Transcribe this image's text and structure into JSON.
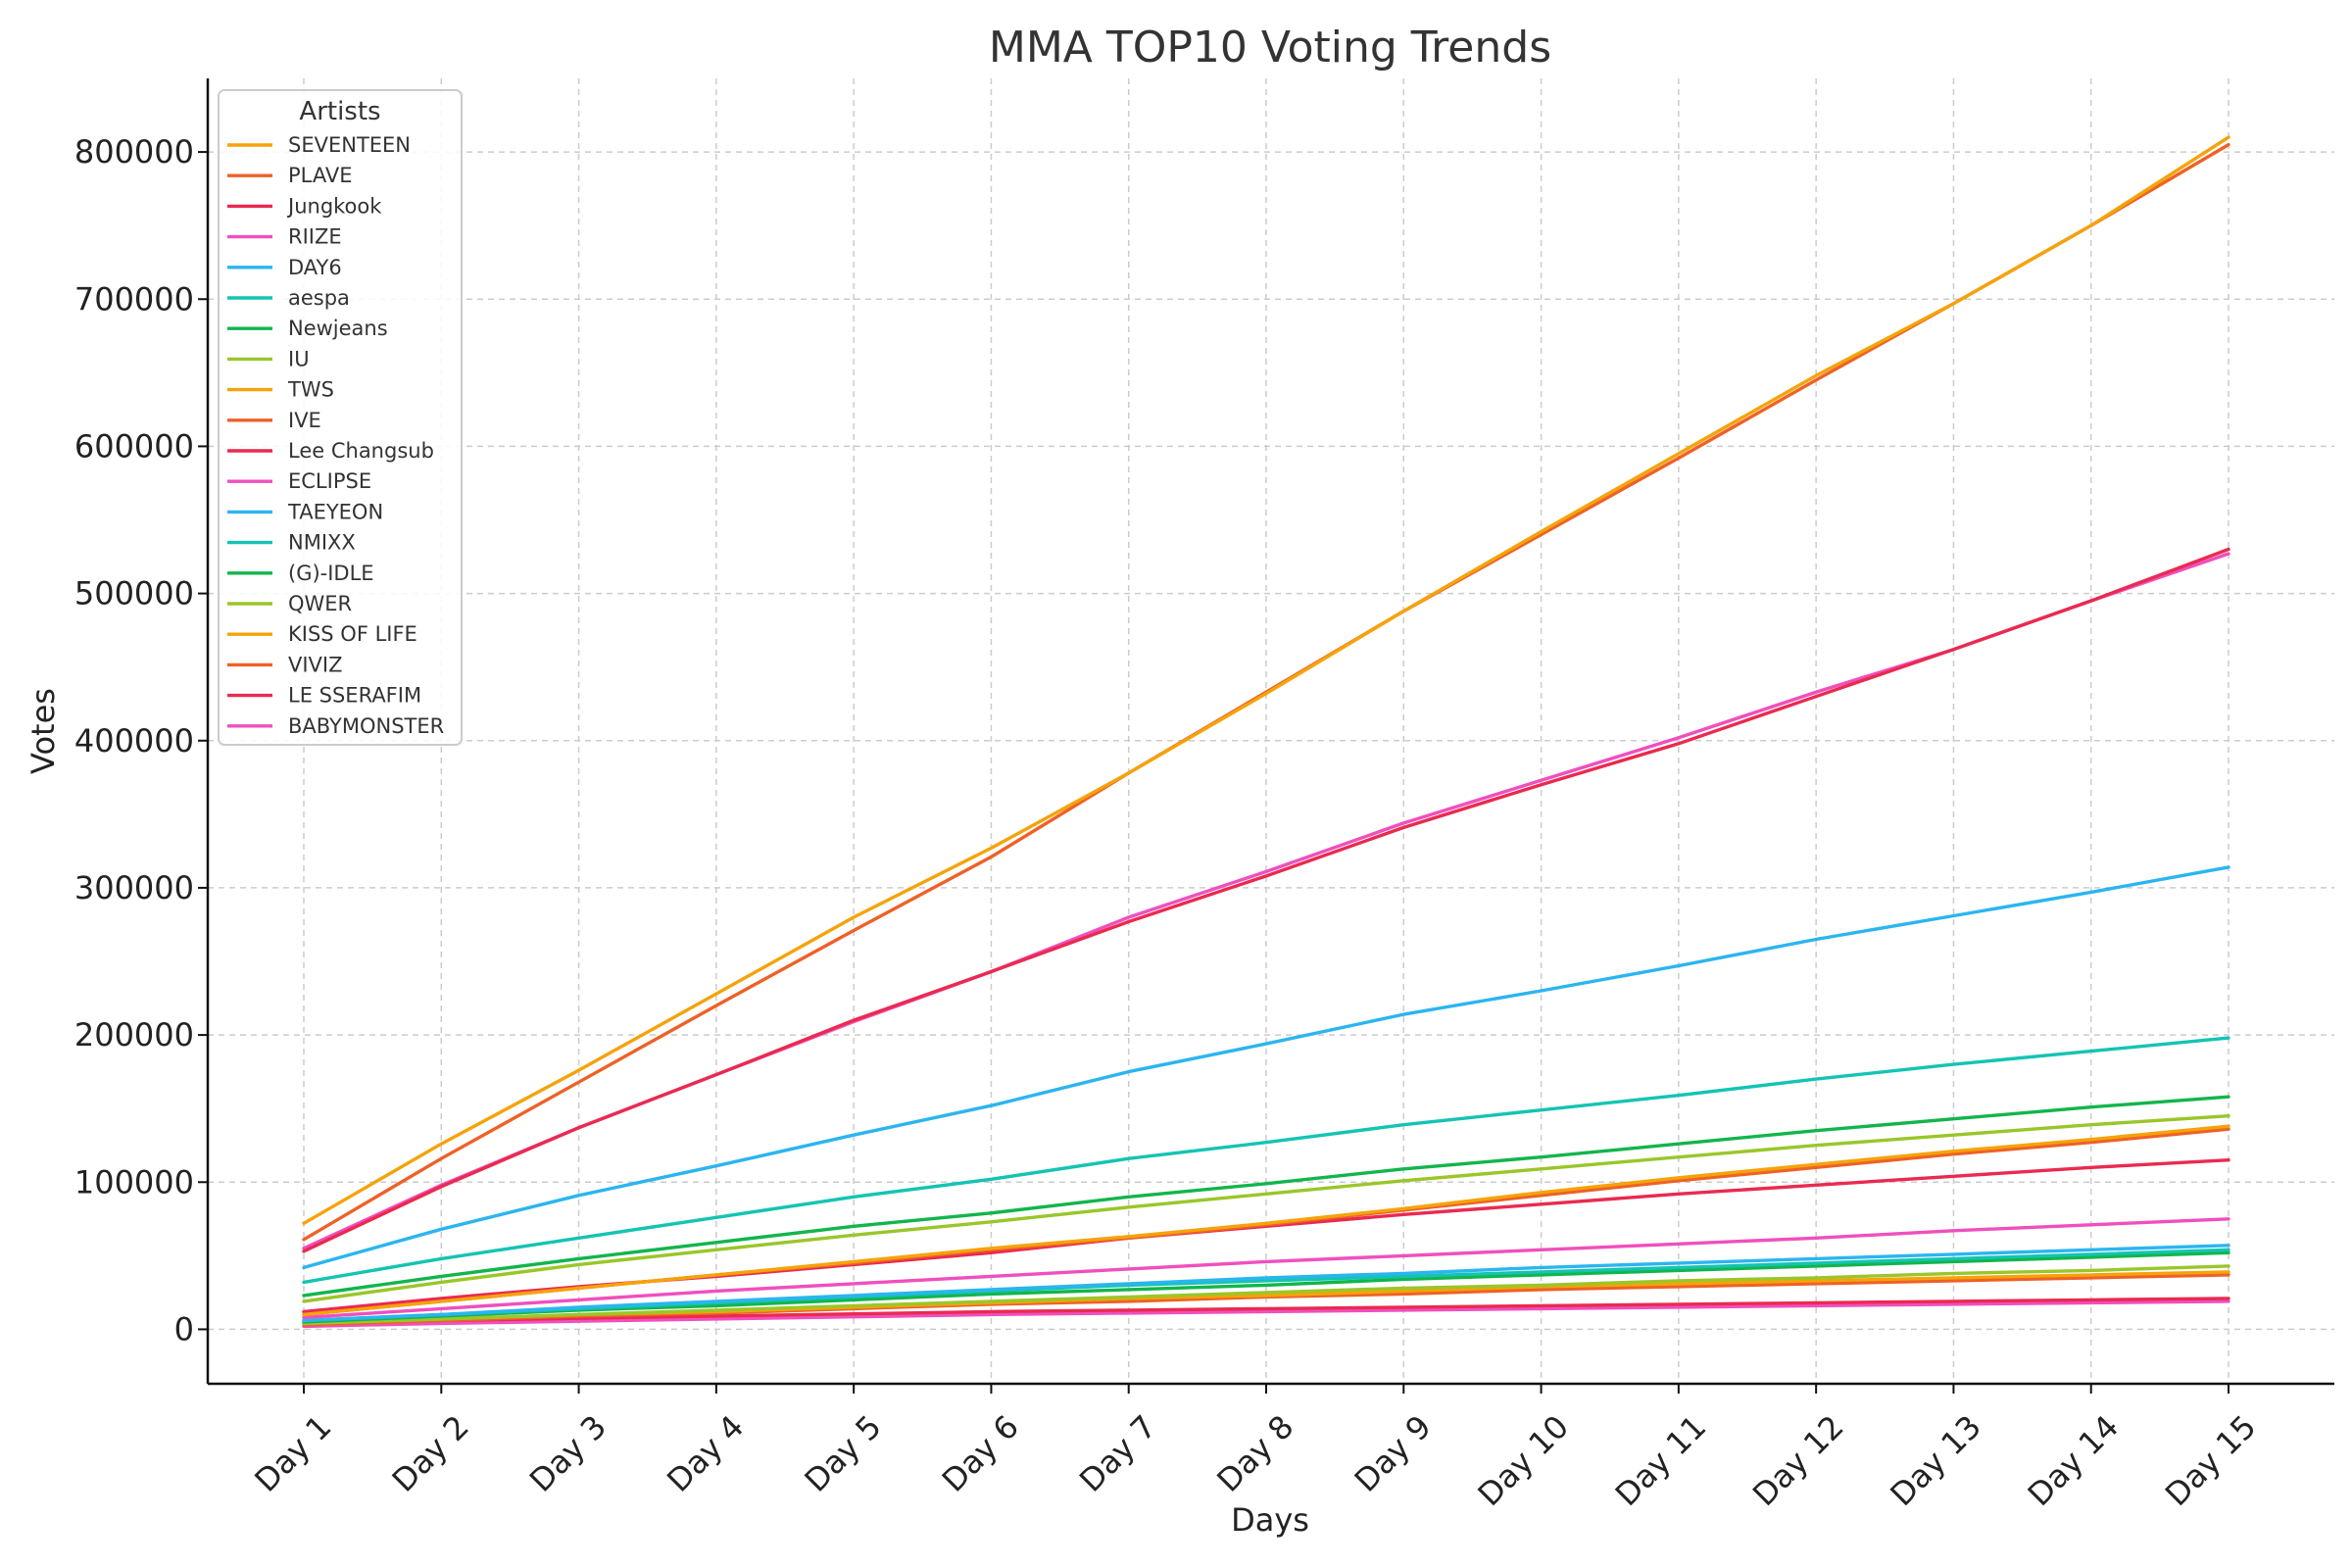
{
  "chart_data": {
    "type": "line",
    "title": "MMA TOP10 Voting Trends",
    "xlabel": "Days",
    "ylabel": "Votes",
    "ylim": [
      -37000,
      850000
    ],
    "yticks": [
      0,
      100000,
      200000,
      300000,
      400000,
      500000,
      600000,
      700000,
      800000
    ],
    "grid": true,
    "legend": {
      "title": "Artists",
      "placement": "top-left"
    },
    "categories": [
      "Day 1",
      "Day 2",
      "Day 3",
      "Day 4",
      "Day 5",
      "Day 6",
      "Day 7",
      "Day 8",
      "Day 9",
      "Day 10",
      "Day 11",
      "Day 12",
      "Day 13",
      "Day 14",
      "Day 15"
    ],
    "series": [
      {
        "name": "SEVENTEEN",
        "color": "#f5a30a",
        "values": [
          72000,
          126000,
          176000,
          228000,
          280000,
          327000,
          378000,
          432000,
          488000,
          542000,
          595000,
          648000,
          697000,
          750000,
          810000
        ]
      },
      {
        "name": "PLAVE",
        "color": "#ee6127",
        "values": [
          61000,
          116000,
          168000,
          220000,
          271000,
          321000,
          378000,
          433000,
          488000,
          540000,
          592000,
          645000,
          697000,
          750000,
          805000
        ]
      },
      {
        "name": "Jungkook",
        "color": "#ea2a50",
        "values": [
          53000,
          97000,
          137000,
          173000,
          210000,
          243000,
          277000,
          308000,
          341000,
          370000,
          398000,
          430000,
          462000,
          495000,
          530000
        ]
      },
      {
        "name": "RIIZE",
        "color": "#f04fbe",
        "values": [
          55000,
          98000,
          137000,
          173000,
          209000,
          243000,
          280000,
          311000,
          344000,
          373000,
          402000,
          433000,
          462000,
          495000,
          527000
        ]
      },
      {
        "name": "DAY6",
        "color": "#2bb5f0",
        "values": [
          42000,
          68000,
          91000,
          111000,
          132000,
          152000,
          175000,
          194000,
          214000,
          230000,
          247000,
          265000,
          281000,
          297000,
          314000
        ]
      },
      {
        "name": "aespa",
        "color": "#14c4b2",
        "values": [
          32000,
          48000,
          62000,
          76000,
          90000,
          102000,
          116000,
          127000,
          139000,
          149000,
          159000,
          170000,
          180000,
          189000,
          198000
        ]
      },
      {
        "name": "Newjeans",
        "color": "#12b54c",
        "values": [
          23000,
          36000,
          48000,
          59000,
          70000,
          79000,
          90000,
          99000,
          109000,
          117000,
          126000,
          135000,
          143000,
          151000,
          158000
        ]
      },
      {
        "name": "IU",
        "color": "#9ac62a",
        "values": [
          19000,
          32000,
          44000,
          54000,
          64000,
          73000,
          83000,
          92000,
          101000,
          109000,
          117000,
          125000,
          132000,
          139000,
          145000
        ]
      },
      {
        "name": "TWS",
        "color": "#f5a30a",
        "values": [
          10000,
          19000,
          28000,
          37000,
          46000,
          55000,
          63000,
          72000,
          82000,
          93000,
          103000,
          112000,
          121000,
          129000,
          138000
        ]
      },
      {
        "name": "IVE",
        "color": "#ee6127",
        "values": [
          10000,
          19000,
          28000,
          37000,
          45000,
          54000,
          62000,
          71000,
          81000,
          91000,
          101000,
          110000,
          119000,
          127000,
          136000
        ]
      },
      {
        "name": "Lee Changsub",
        "color": "#ea2a50",
        "values": [
          12000,
          21000,
          29000,
          36000,
          44000,
          52000,
          62000,
          70000,
          78000,
          85000,
          92000,
          98000,
          104000,
          110000,
          115000
        ]
      },
      {
        "name": "ECLIPSE",
        "color": "#f04fbe",
        "values": [
          8000,
          14000,
          20000,
          26000,
          31000,
          36000,
          41000,
          46000,
          50000,
          54000,
          58000,
          62000,
          67000,
          71000,
          75000
        ]
      },
      {
        "name": "TAEYEON",
        "color": "#2bb5f0",
        "values": [
          6000,
          10000,
          15000,
          19000,
          23000,
          27000,
          31000,
          35000,
          38000,
          42000,
          45000,
          48000,
          51000,
          54000,
          57000
        ]
      },
      {
        "name": "NMIXX",
        "color": "#14c4b2",
        "values": [
          6000,
          10000,
          14000,
          18000,
          22000,
          26000,
          30000,
          33000,
          36000,
          39000,
          42000,
          45000,
          48000,
          51000,
          54000
        ]
      },
      {
        "name": "(G)-IDLE",
        "color": "#12b54c",
        "values": [
          5000,
          9000,
          13000,
          16000,
          20000,
          24000,
          27000,
          30000,
          34000,
          37000,
          40000,
          43000,
          46000,
          49000,
          52000
        ]
      },
      {
        "name": "QWER",
        "color": "#9ac62a",
        "values": [
          4000,
          7000,
          10000,
          13000,
          16000,
          19000,
          22000,
          25000,
          28000,
          30000,
          33000,
          35000,
          38000,
          40000,
          43000
        ]
      },
      {
        "name": "KISS OF LIFE",
        "color": "#f5a30a",
        "values": [
          4000,
          7000,
          10000,
          12000,
          15000,
          18000,
          21000,
          23000,
          26000,
          29000,
          31000,
          33000,
          35000,
          37000,
          39000
        ]
      },
      {
        "name": "VIVIZ",
        "color": "#ee6127",
        "values": [
          3000,
          6000,
          9000,
          11000,
          14000,
          17000,
          19000,
          22000,
          24000,
          27000,
          29000,
          31000,
          33000,
          35000,
          37000
        ]
      },
      {
        "name": "LE SSERAFIM",
        "color": "#ea2a50",
        "values": [
          4000,
          6000,
          7500,
          9000,
          10500,
          12000,
          13000,
          14000,
          15000,
          16000,
          17000,
          18000,
          19000,
          20000,
          21000
        ]
      },
      {
        "name": "BABYMONSTER",
        "color": "#f04fbe",
        "values": [
          2000,
          4000,
          5500,
          7000,
          8500,
          10000,
          11000,
          12000,
          13000,
          14000,
          15000,
          16000,
          17000,
          18000,
          19000
        ]
      }
    ]
  }
}
